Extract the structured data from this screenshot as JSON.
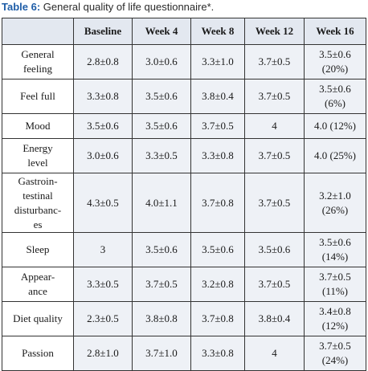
{
  "caption": {
    "label": "Table 6:",
    "text": " General quality of life questionnaire*."
  },
  "table": {
    "headers": [
      "",
      "Baseline",
      "Week 4",
      "Week 8",
      "Week 12",
      "Week 16"
    ],
    "rows": [
      {
        "label": [
          "General",
          "feeling"
        ],
        "cells": [
          [
            "2.8±0.8"
          ],
          [
            "3.0±0.6"
          ],
          [
            "3.3±1.0"
          ],
          [
            "3.7±0.5"
          ],
          [
            "3.5±0.6",
            "(20%)"
          ]
        ]
      },
      {
        "label": [
          "Feel full"
        ],
        "cells": [
          [
            "3.3±0.8"
          ],
          [
            "3.5±0.6"
          ],
          [
            "3.8±0.4"
          ],
          [
            "3.7±0.5"
          ],
          [
            "3.5±0.6",
            "(6%)"
          ]
        ]
      },
      {
        "label": [
          "Mood"
        ],
        "cells": [
          [
            "3.5±0.6"
          ],
          [
            "3.5±0.6"
          ],
          [
            "3.7±0.5"
          ],
          [
            "4"
          ],
          [
            "4.0 (12%)"
          ]
        ]
      },
      {
        "label": [
          "Energy",
          "level"
        ],
        "cells": [
          [
            "3.0±0.6"
          ],
          [
            "3.3±0.5"
          ],
          [
            "3.3±0.8"
          ],
          [
            "3.7±0.5"
          ],
          [
            "4.0 (25%)"
          ]
        ]
      },
      {
        "label": [
          "Gastroin-",
          "testinal",
          "disturbanc-",
          "es"
        ],
        "cells": [
          [
            "4.3±0.5"
          ],
          [
            "4.0±1.1"
          ],
          [
            "3.7±0.8"
          ],
          [
            "3.7±0.5"
          ],
          [
            "3.2±1.0",
            "(26%)"
          ]
        ]
      },
      {
        "label": [
          "Sleep"
        ],
        "cells": [
          [
            "3"
          ],
          [
            "3.5±0.6"
          ],
          [
            "3.5±0.6"
          ],
          [
            "3.5±0.6"
          ],
          [
            "3.5±0.6",
            "(14%)"
          ]
        ]
      },
      {
        "label": [
          "Appear-",
          "ance"
        ],
        "cells": [
          [
            "3.3±0.5"
          ],
          [
            "3.7±0.5"
          ],
          [
            "3.2±0.8"
          ],
          [
            "3.7±0.5"
          ],
          [
            "3.7±0.5",
            "(11%)"
          ]
        ]
      },
      {
        "label": [
          "Diet quality"
        ],
        "cells": [
          [
            "2.3±0.5"
          ],
          [
            "3.8±0.8"
          ],
          [
            "3.7±0.8"
          ],
          [
            "3.8±0.4"
          ],
          [
            "3.4±0.8",
            "(12%)"
          ]
        ]
      },
      {
        "label": [
          "Passion"
        ],
        "cells": [
          [
            "2.8±1.0"
          ],
          [
            "3.7±1.0"
          ],
          [
            "3.3±0.8"
          ],
          [
            "4"
          ],
          [
            "3.7±0.5",
            "(24%)"
          ]
        ]
      }
    ]
  }
}
